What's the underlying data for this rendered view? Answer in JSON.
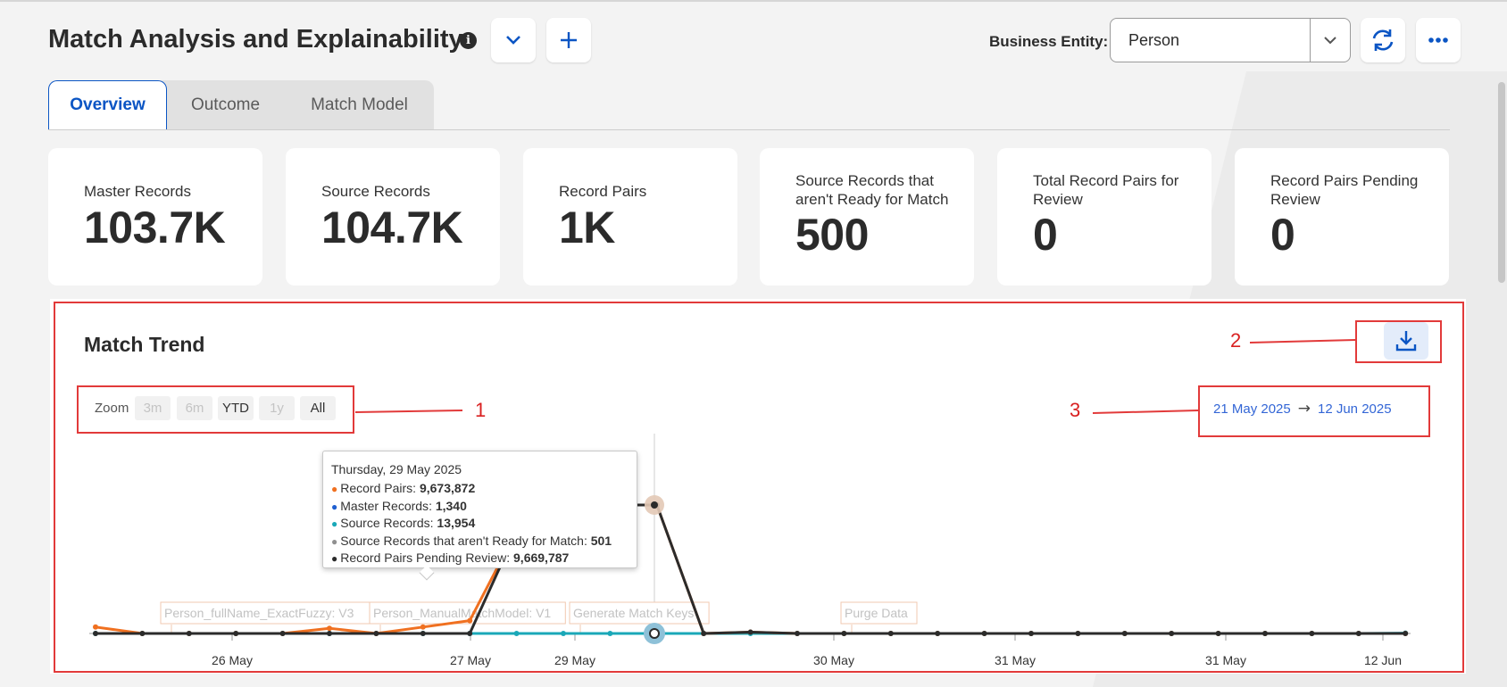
{
  "header": {
    "title": "Match Analysis and Explainability",
    "info_icon": "info-icon",
    "dropdown_icon": "chevron-down-icon",
    "add_icon": "plus-icon",
    "business_entity_label": "Business Entity:",
    "business_entity_value": "Person",
    "refresh_icon": "refresh-icon",
    "more_icon": "more-horizontal-icon"
  },
  "tabs": [
    {
      "label": "Overview",
      "active": true
    },
    {
      "label": "Outcome",
      "active": false
    },
    {
      "label": "Match Model",
      "active": false
    }
  ],
  "cards": [
    {
      "label": "Master Records",
      "value": "103.7K"
    },
    {
      "label": "Source Records",
      "value": "104.7K"
    },
    {
      "label": "Record Pairs",
      "value": "1K"
    },
    {
      "label": "Source Records that aren't Ready for Match",
      "value": "500"
    },
    {
      "label": "Total Record Pairs for Review",
      "value": "0"
    },
    {
      "label": "Record Pairs Pending Review",
      "value": "0"
    }
  ],
  "match_trend": {
    "title": "Match Trend",
    "download_icon": "download-icon",
    "zoom": {
      "label": "Zoom",
      "buttons": [
        {
          "label": "3m",
          "enabled": false
        },
        {
          "label": "6m",
          "enabled": false
        },
        {
          "label": "YTD",
          "enabled": true
        },
        {
          "label": "1y",
          "enabled": false
        },
        {
          "label": "All",
          "enabled": true
        }
      ]
    },
    "range": {
      "from": "21 May 2025",
      "to": "12 Jun 2025"
    },
    "tooltip": {
      "title": "Thursday, 29 May 2025",
      "rows": [
        {
          "name": "Record Pairs",
          "value": "9,673,872",
          "color": "#f07020"
        },
        {
          "name": "Master Records",
          "value": "1,340",
          "color": "#1f5fd0"
        },
        {
          "name": "Source Records",
          "value": "13,954",
          "color": "#1aa8b8"
        },
        {
          "name": "Source Records that aren't Ready for Match",
          "value": "501",
          "color": "#909090"
        },
        {
          "name": "Record Pairs Pending Review",
          "value": "9,669,787",
          "color": "#2b2b2b"
        }
      ]
    }
  },
  "annotations": {
    "one": "1",
    "two": "2",
    "three": "3"
  },
  "chart_data": {
    "type": "line",
    "x_tick_labels": [
      "26 May",
      "27 May",
      "29 May",
      "30 May",
      "31 May",
      "31 May",
      "12 Jun"
    ],
    "flags": [
      "Person_fullName_ExactFuzzy: V3",
      "Person_ManualMatchModel: V1",
      "Generate Match Keys",
      "Purge Data"
    ],
    "series": [
      {
        "name": "Record Pairs",
        "color": "#f07020",
        "values": [
          5,
          0,
          0,
          0,
          0,
          4,
          0,
          5,
          10,
          80,
          100,
          100,
          100,
          0,
          1,
          0,
          0,
          0,
          0,
          0,
          0,
          0,
          0,
          0,
          0,
          0,
          0,
          0,
          0
        ]
      },
      {
        "name": "Record Pairs Pending Review",
        "color": "#2b2b2b",
        "values": [
          0,
          0,
          0,
          0,
          0,
          0,
          0,
          0,
          0,
          80,
          100,
          100,
          100,
          0,
          1,
          0,
          0,
          0,
          0,
          0,
          0,
          0,
          0,
          0,
          0,
          0,
          0,
          0,
          0
        ]
      },
      {
        "name": "Source Records",
        "color": "#1aa8b8",
        "values": [
          0,
          0,
          0,
          0,
          0,
          0,
          0,
          0,
          0,
          0,
          0,
          0,
          0,
          0,
          0,
          0,
          0,
          0,
          0,
          0,
          0,
          0,
          0,
          0,
          0,
          0,
          0,
          0,
          0.3
        ]
      }
    ]
  },
  "colors": {
    "accent": "#0b55c4",
    "annotation": "#e23a3a"
  }
}
